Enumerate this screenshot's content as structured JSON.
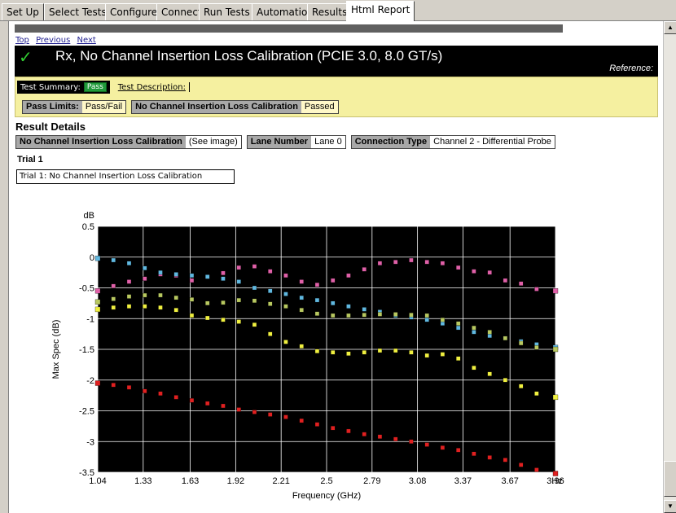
{
  "tabs": [
    "Set Up",
    "Select Tests",
    "Configure",
    "Connect",
    "Run Tests",
    "Automation",
    "Results",
    "Html Report"
  ],
  "nav": {
    "top": "Top",
    "previous": "Previous",
    "next": "Next"
  },
  "title": "Rx, No Channel Insertion Loss Calibration (PCIE 3.0, 8.0 GT/s)",
  "reference_label": "Reference:",
  "summary": {
    "label": "Test Summary:",
    "status": "Pass",
    "description_link": "Test Description:"
  },
  "limits": [
    {
      "key": "Pass Limits:",
      "value": "Pass/Fail"
    },
    {
      "key": "No Channel Insertion Loss Calibration",
      "value": "Passed"
    }
  ],
  "result_details": {
    "title": "Result Details",
    "fields": [
      {
        "key": "No Channel Insertion Loss Calibration",
        "value": "(See image)"
      },
      {
        "key": "Lane Number",
        "value": "Lane 0"
      },
      {
        "key": "Connection Type",
        "value": "Channel 2 - Differential Probe"
      }
    ]
  },
  "trial": {
    "label": "Trial 1",
    "box_text": "Trial 1: No Channel Insertion Loss Calibration"
  },
  "colors": {
    "pink": "#e060a8",
    "cyan": "#60b8e0",
    "yellow": "#f0f040",
    "olive": "#b8c860",
    "red": "#e02020",
    "plot_bg": "#000000",
    "grid": "#ffffff"
  },
  "chart_data": {
    "type": "scatter",
    "x_label": "Frequency (GHz)",
    "y_label": "Max Spec (dB)",
    "y_unit": "dB",
    "x_unit_suffix": "Hz",
    "xlim": [
      1.04,
      3.96
    ],
    "ylim": [
      -3.5,
      0.5
    ],
    "x_ticks": [
      "1.04",
      "1.33",
      "1.63",
      "1.92",
      "2.21",
      "2.5",
      "2.79",
      "3.08",
      "3.37",
      "3.67",
      "3.96"
    ],
    "y_ticks": [
      "0.5",
      "0",
      "-0.5",
      "-1",
      "-1.5",
      "-2",
      "-2.5",
      "-3",
      "-3.5"
    ],
    "grid": true,
    "x": [
      1.04,
      1.14,
      1.24,
      1.34,
      1.44,
      1.54,
      1.64,
      1.74,
      1.84,
      1.94,
      2.04,
      2.14,
      2.24,
      2.34,
      2.44,
      2.54,
      2.64,
      2.74,
      2.84,
      2.94,
      3.04,
      3.14,
      3.24,
      3.34,
      3.44,
      3.54,
      3.64,
      3.74,
      3.84,
      3.96
    ],
    "series": [
      {
        "color": "pink",
        "values": [
          -0.55,
          -0.47,
          -0.4,
          -0.35,
          -0.28,
          -0.3,
          -0.38,
          -0.32,
          -0.26,
          -0.17,
          -0.15,
          -0.23,
          -0.3,
          -0.4,
          -0.45,
          -0.38,
          -0.3,
          -0.2,
          -0.1,
          -0.08,
          -0.05,
          -0.08,
          -0.1,
          -0.17,
          -0.23,
          -0.25,
          -0.38,
          -0.43,
          -0.52,
          -0.55
        ]
      },
      {
        "color": "cyan",
        "values": [
          -0.02,
          -0.05,
          -0.1,
          -0.18,
          -0.25,
          -0.28,
          -0.3,
          -0.32,
          -0.35,
          -0.4,
          -0.5,
          -0.55,
          -0.6,
          -0.66,
          -0.7,
          -0.75,
          -0.8,
          -0.85,
          -0.89,
          -0.95,
          -0.98,
          -1.02,
          -1.08,
          -1.15,
          -1.22,
          -1.28,
          -1.32,
          -1.37,
          -1.42,
          -1.47
        ]
      },
      {
        "color": "olive",
        "values": [
          -0.73,
          -0.68,
          -0.64,
          -0.62,
          -0.62,
          -0.66,
          -0.69,
          -0.75,
          -0.74,
          -0.7,
          -0.71,
          -0.76,
          -0.8,
          -0.86,
          -0.92,
          -0.95,
          -0.95,
          -0.94,
          -0.93,
          -0.93,
          -0.94,
          -0.95,
          -1.02,
          -1.08,
          -1.15,
          -1.22,
          -1.32,
          -1.4,
          -1.47,
          -1.5
        ]
      },
      {
        "color": "yellow",
        "values": [
          -0.85,
          -0.82,
          -0.8,
          -0.8,
          -0.82,
          -0.86,
          -0.95,
          -0.99,
          -1.02,
          -1.05,
          -1.1,
          -1.25,
          -1.38,
          -1.45,
          -1.53,
          -1.55,
          -1.57,
          -1.55,
          -1.52,
          -1.52,
          -1.55,
          -1.6,
          -1.58,
          -1.65,
          -1.8,
          -1.9,
          -2.0,
          -2.1,
          -2.22,
          -2.28
        ]
      },
      {
        "color": "red",
        "values": [
          -2.05,
          -2.08,
          -2.12,
          -2.18,
          -2.22,
          -2.28,
          -2.33,
          -2.38,
          -2.42,
          -2.48,
          -2.52,
          -2.56,
          -2.6,
          -2.66,
          -2.72,
          -2.78,
          -2.83,
          -2.88,
          -2.92,
          -2.96,
          -3.0,
          -3.05,
          -3.1,
          -3.14,
          -3.2,
          -3.26,
          -3.3,
          -3.38,
          -3.46,
          -3.52
        ]
      }
    ]
  }
}
